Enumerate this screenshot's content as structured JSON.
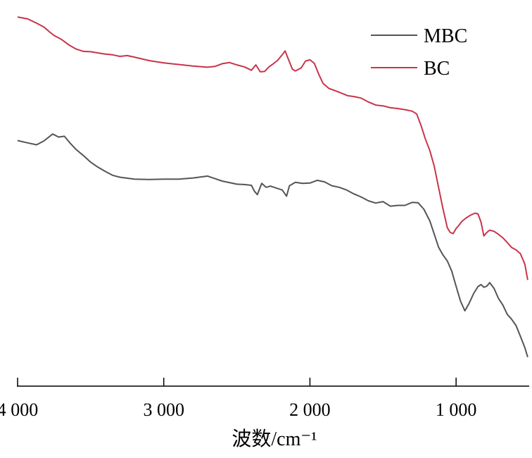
{
  "chart_data": {
    "type": "line",
    "title": "",
    "xlabel": "波数/cm⁻¹",
    "ylabel": "",
    "x_reversed": true,
    "xlim": [
      500,
      4000
    ],
    "ylim": [
      0,
      100
    ],
    "x_ticks": [
      4000,
      3000,
      2000,
      1000
    ],
    "x_tick_labels": [
      "4 000",
      "3 000",
      "2 000",
      "1 000"
    ],
    "y_axis_visible": false,
    "grid": false,
    "legend_position": "top-right",
    "series": [
      {
        "name": "MBC",
        "color": "#555555",
        "points": [
          [
            4000,
            63.6
          ],
          [
            3930,
            63.0
          ],
          [
            3870,
            62.5
          ],
          [
            3820,
            63.5
          ],
          [
            3760,
            65.3
          ],
          [
            3720,
            64.5
          ],
          [
            3680,
            64.7
          ],
          [
            3640,
            62.9
          ],
          [
            3600,
            61.3
          ],
          [
            3550,
            59.7
          ],
          [
            3500,
            58.0
          ],
          [
            3450,
            56.7
          ],
          [
            3400,
            55.6
          ],
          [
            3350,
            54.6
          ],
          [
            3300,
            54.1
          ],
          [
            3200,
            53.6
          ],
          [
            3100,
            53.5
          ],
          [
            3000,
            53.6
          ],
          [
            2900,
            53.6
          ],
          [
            2800,
            53.9
          ],
          [
            2700,
            54.4
          ],
          [
            2600,
            53.1
          ],
          [
            2500,
            52.3
          ],
          [
            2450,
            52.2
          ],
          [
            2400,
            52.0
          ],
          [
            2380,
            50.5
          ],
          [
            2360,
            49.6
          ],
          [
            2330,
            52.5
          ],
          [
            2300,
            51.5
          ],
          [
            2270,
            51.8
          ],
          [
            2230,
            51.3
          ],
          [
            2190,
            50.8
          ],
          [
            2160,
            49.2
          ],
          [
            2140,
            51.9
          ],
          [
            2100,
            52.8
          ],
          [
            2050,
            52.5
          ],
          [
            2000,
            52.6
          ],
          [
            1950,
            53.3
          ],
          [
            1900,
            52.9
          ],
          [
            1850,
            51.9
          ],
          [
            1800,
            51.5
          ],
          [
            1750,
            50.8
          ],
          [
            1700,
            49.8
          ],
          [
            1650,
            49.0
          ],
          [
            1600,
            48.0
          ],
          [
            1550,
            47.4
          ],
          [
            1500,
            47.8
          ],
          [
            1450,
            46.6
          ],
          [
            1400,
            46.8
          ],
          [
            1350,
            46.8
          ],
          [
            1300,
            47.6
          ],
          [
            1260,
            47.5
          ],
          [
            1220,
            45.8
          ],
          [
            1180,
            42.8
          ],
          [
            1150,
            39.4
          ],
          [
            1120,
            36.0
          ],
          [
            1090,
            34.0
          ],
          [
            1060,
            32.4
          ],
          [
            1030,
            29.8
          ],
          [
            1000,
            25.9
          ],
          [
            970,
            22.0
          ],
          [
            940,
            19.5
          ],
          [
            910,
            21.5
          ],
          [
            880,
            24.0
          ],
          [
            850,
            25.8
          ],
          [
            830,
            26.3
          ],
          [
            810,
            25.6
          ],
          [
            790,
            25.9
          ],
          [
            770,
            26.8
          ],
          [
            740,
            25.3
          ],
          [
            710,
            22.7
          ],
          [
            680,
            21.0
          ],
          [
            650,
            18.6
          ],
          [
            620,
            17.3
          ],
          [
            590,
            15.7
          ],
          [
            560,
            12.9
          ],
          [
            530,
            10.0
          ],
          [
            510,
            7.5
          ]
        ]
      },
      {
        "name": "BC",
        "color": "#c8344a",
        "points": [
          [
            4000,
            95.6
          ],
          [
            3930,
            95.1
          ],
          [
            3870,
            94.0
          ],
          [
            3820,
            93.0
          ],
          [
            3780,
            91.7
          ],
          [
            3750,
            90.8
          ],
          [
            3700,
            89.8
          ],
          [
            3650,
            88.4
          ],
          [
            3600,
            87.3
          ],
          [
            3550,
            86.7
          ],
          [
            3500,
            86.6
          ],
          [
            3450,
            86.3
          ],
          [
            3400,
            86.0
          ],
          [
            3350,
            85.8
          ],
          [
            3300,
            85.4
          ],
          [
            3250,
            85.6
          ],
          [
            3200,
            85.2
          ],
          [
            3100,
            84.3
          ],
          [
            3000,
            83.7
          ],
          [
            2900,
            83.3
          ],
          [
            2800,
            82.9
          ],
          [
            2700,
            82.6
          ],
          [
            2650,
            82.8
          ],
          [
            2600,
            83.5
          ],
          [
            2550,
            83.8
          ],
          [
            2500,
            83.2
          ],
          [
            2450,
            82.7
          ],
          [
            2400,
            81.8
          ],
          [
            2370,
            83.2
          ],
          [
            2340,
            81.4
          ],
          [
            2310,
            81.5
          ],
          [
            2280,
            82.7
          ],
          [
            2250,
            83.5
          ],
          [
            2220,
            84.4
          ],
          [
            2190,
            85.8
          ],
          [
            2170,
            86.8
          ],
          [
            2150,
            84.9
          ],
          [
            2120,
            82.1
          ],
          [
            2100,
            81.6
          ],
          [
            2060,
            82.4
          ],
          [
            2030,
            84.2
          ],
          [
            2000,
            84.5
          ],
          [
            1970,
            83.6
          ],
          [
            1940,
            80.8
          ],
          [
            1910,
            78.4
          ],
          [
            1870,
            77.1
          ],
          [
            1820,
            76.4
          ],
          [
            1780,
            75.8
          ],
          [
            1740,
            75.2
          ],
          [
            1700,
            75.0
          ],
          [
            1650,
            74.6
          ],
          [
            1600,
            73.6
          ],
          [
            1550,
            72.8
          ],
          [
            1500,
            72.6
          ],
          [
            1450,
            72.1
          ],
          [
            1400,
            71.9
          ],
          [
            1350,
            71.6
          ],
          [
            1300,
            71.2
          ],
          [
            1270,
            70.5
          ],
          [
            1240,
            67.5
          ],
          [
            1210,
            64.0
          ],
          [
            1180,
            61.0
          ],
          [
            1150,
            57.0
          ],
          [
            1120,
            51.5
          ],
          [
            1090,
            46.0
          ],
          [
            1060,
            41.0
          ],
          [
            1040,
            39.8
          ],
          [
            1020,
            39.5
          ],
          [
            1000,
            40.8
          ],
          [
            980,
            41.7
          ],
          [
            960,
            42.7
          ],
          [
            930,
            43.6
          ],
          [
            900,
            44.3
          ],
          [
            870,
            44.8
          ],
          [
            850,
            44.6
          ],
          [
            830,
            42.5
          ],
          [
            810,
            38.9
          ],
          [
            790,
            39.8
          ],
          [
            770,
            40.4
          ],
          [
            740,
            40.1
          ],
          [
            710,
            39.3
          ],
          [
            680,
            38.4
          ],
          [
            650,
            37.2
          ],
          [
            620,
            35.9
          ],
          [
            590,
            35.3
          ],
          [
            560,
            34.3
          ],
          [
            530,
            31.6
          ],
          [
            510,
            27.5
          ]
        ]
      }
    ]
  }
}
